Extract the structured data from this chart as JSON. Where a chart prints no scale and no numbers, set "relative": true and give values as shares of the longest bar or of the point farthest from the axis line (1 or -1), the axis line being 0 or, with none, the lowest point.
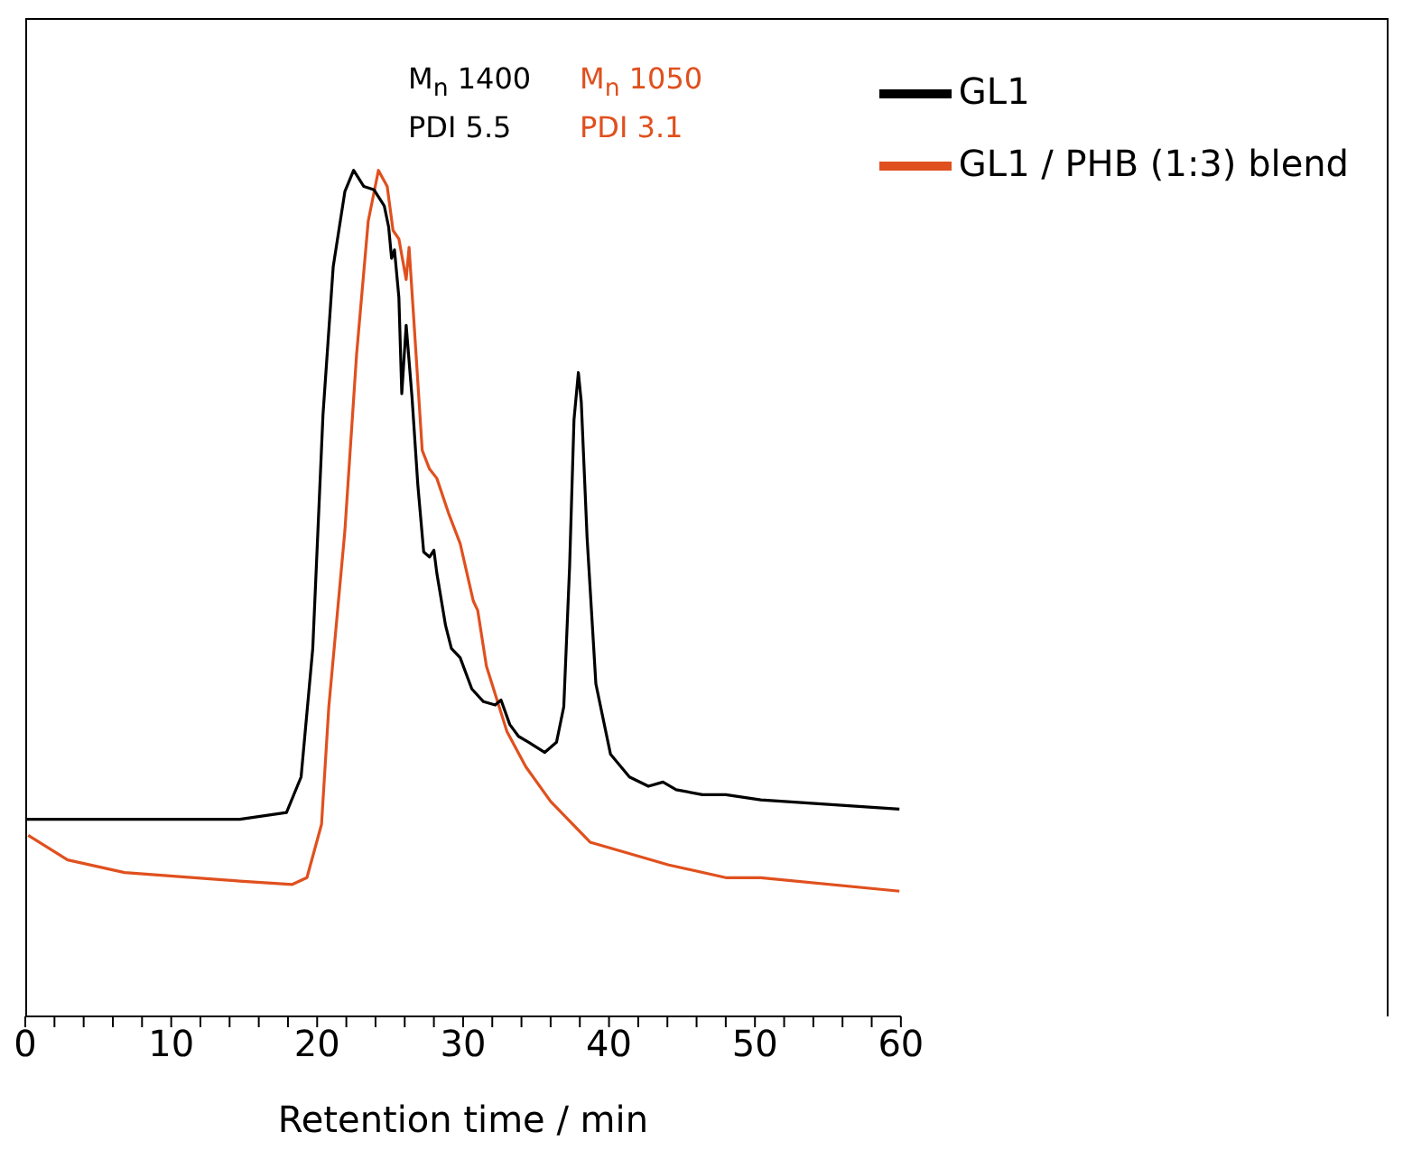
{
  "chart_data": {
    "type": "line",
    "xlabel": "Retention time / min",
    "relative": true,
    "legend": "top right",
    "annotations": [
      "M$_{n}$ 1400",
      "PDI 5.5",
      "M$_{n}$ 1050",
      "PDI 3.1"
    ],
    "xlim": [
      0,
      60
    ],
    "xticks": [
      0,
      {
        "value": 2,
        "label": null
      },
      {
        "value": 4,
        "label": null
      },
      {
        "value": 6,
        "label": null
      },
      {
        "value": 8,
        "label": null
      },
      10,
      {
        "value": 12,
        "label": null
      },
      {
        "value": 14,
        "label": null
      },
      {
        "value": 16,
        "label": null
      },
      {
        "value": 18,
        "label": null
      },
      20,
      {
        "value": 22,
        "label": null
      },
      {
        "value": 24,
        "label": null
      },
      {
        "value": 26,
        "label": null
      },
      {
        "value": 28,
        "label": null
      },
      30,
      {
        "value": 32,
        "label": null
      },
      {
        "value": 34,
        "label": null
      },
      {
        "value": 36,
        "label": null
      },
      {
        "value": 38,
        "label": null
      },
      40,
      {
        "value": 42,
        "label": null
      },
      {
        "value": 44,
        "label": null
      },
      {
        "value": 46,
        "label": null
      },
      {
        "value": 48,
        "label": null
      },
      50,
      {
        "value": 52,
        "label": null
      },
      {
        "value": 54,
        "label": null
      },
      {
        "value": 56,
        "label": null
      },
      {
        "value": 58,
        "label": null
      },
      60
    ],
    "series": [
      {
        "name": "GL1 / PHB (1:3) blend",
        "color": "#e0501e",
        "x": [
          0.2,
          2.9,
          6.8,
          14.7,
          18.3,
          19.3,
          20.3,
          20.8,
          21.9,
          22.7,
          23.5,
          24.2,
          24.8,
          25.2,
          25.6,
          26.1,
          26.3,
          26.6,
          27.2,
          27.7,
          28.2,
          29.0,
          29.8,
          30.7,
          31.0,
          31.6,
          33.0,
          34.3,
          36.0,
          38.7,
          44.1,
          48.0,
          50.4,
          59.9
        ],
        "values": [
          0.214,
          0.185,
          0.17,
          0.16,
          0.156,
          0.164,
          0.227,
          0.366,
          0.574,
          0.782,
          0.94,
          1.0,
          0.981,
          0.929,
          0.919,
          0.871,
          0.909,
          0.83,
          0.669,
          0.647,
          0.636,
          0.595,
          0.559,
          0.491,
          0.48,
          0.414,
          0.337,
          0.295,
          0.254,
          0.206,
          0.179,
          0.164,
          0.164,
          0.148
        ]
      },
      {
        "name": "GL1",
        "color": "#000000",
        "x": [
          0,
          14.7,
          17.9,
          18.9,
          19.7,
          20.4,
          21.1,
          21.9,
          22.5,
          23.2,
          23.9,
          24.6,
          24.9,
          25.1,
          25.3,
          25.6,
          25.8,
          26.1,
          26.5,
          26.9,
          27.3,
          27.7,
          28.0,
          28.2,
          28.8,
          29.2,
          29.8,
          30.6,
          31.4,
          32.2,
          32.6,
          33.2,
          33.8,
          34.5,
          35.6,
          36.4,
          36.9,
          37.3,
          37.6,
          37.9,
          38.1,
          38.5,
          39.1,
          40.1,
          41.4,
          42.7,
          43.7,
          44.6,
          46.4,
          48.0,
          50.4,
          59.9
        ],
        "values": [
          0.233,
          0.233,
          0.241,
          0.283,
          0.435,
          0.711,
          0.886,
          0.975,
          1.0,
          0.981,
          0.977,
          0.958,
          0.933,
          0.896,
          0.906,
          0.85,
          0.736,
          0.817,
          0.732,
          0.628,
          0.549,
          0.543,
          0.551,
          0.524,
          0.462,
          0.435,
          0.424,
          0.387,
          0.372,
          0.368,
          0.374,
          0.345,
          0.331,
          0.324,
          0.312,
          0.324,
          0.366,
          0.532,
          0.705,
          0.761,
          0.726,
          0.565,
          0.393,
          0.31,
          0.283,
          0.272,
          0.277,
          0.268,
          0.262,
          0.262,
          0.256,
          0.245
        ]
      }
    ]
  }
}
